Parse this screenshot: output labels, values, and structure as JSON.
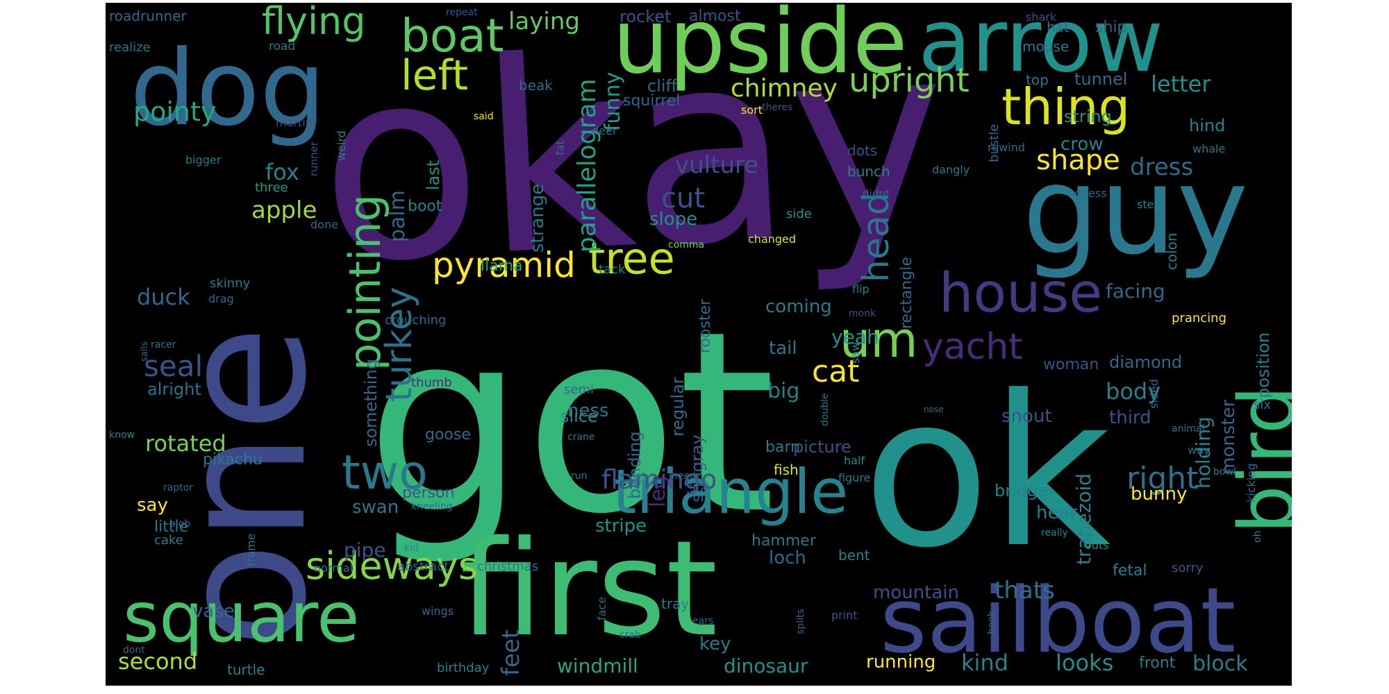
{
  "background_color": "#000000",
  "palette": [
    "#440154",
    "#482878",
    "#3e4989",
    "#31688e",
    "#26828e",
    "#1f9e89",
    "#35b779",
    "#6ece58",
    "#b5de2b",
    "#fde725"
  ],
  "words": [
    {
      "text": "okay",
      "color": "#481f70"
    },
    {
      "text": "got",
      "color": "#35b779"
    },
    {
      "text": "one",
      "color": "#3e4989"
    },
    {
      "text": "ok",
      "color": "#21918c"
    },
    {
      "text": "first",
      "color": "#3fbc73"
    },
    {
      "text": "arrow",
      "color": "#21918c"
    },
    {
      "text": "guy",
      "color": "#2a788e"
    },
    {
      "text": "upside",
      "color": "#6ece58"
    },
    {
      "text": "dog",
      "color": "#31688e"
    },
    {
      "text": "sailboat",
      "color": "#3e4989"
    },
    {
      "text": "square",
      "color": "#4ac16d"
    },
    {
      "text": "bird",
      "color": "#35b779"
    },
    {
      "text": "triangle",
      "color": "#26828e"
    },
    {
      "text": "house",
      "color": "#443a83"
    },
    {
      "text": "thing",
      "color": "#dde318"
    },
    {
      "text": "boat",
      "color": "#5ec962"
    },
    {
      "text": "flying",
      "color": "#52c569"
    },
    {
      "text": "left",
      "color": "#b5de2b"
    },
    {
      "text": "upright",
      "color": "#7ad151"
    },
    {
      "text": "pointing",
      "color": "#4ac16d"
    },
    {
      "text": "turkey",
      "color": "#2c728e"
    },
    {
      "text": "tree",
      "color": "#c8e020"
    },
    {
      "text": "pyramid",
      "color": "#fde725"
    },
    {
      "text": "two",
      "color": "#2a788e"
    },
    {
      "text": "sideways",
      "color": "#86d549"
    },
    {
      "text": "um",
      "color": "#75d054"
    },
    {
      "text": "yacht",
      "color": "#472d7b"
    },
    {
      "text": "head",
      "color": "#2a788e"
    },
    {
      "text": "cat",
      "color": "#fde725"
    },
    {
      "text": "right",
      "color": "#2c728e"
    },
    {
      "text": "flamingo",
      "color": "#3b528b"
    },
    {
      "text": "pointy",
      "color": "#22a884"
    },
    {
      "text": "chimney",
      "color": "#b5de2b"
    },
    {
      "text": "shape",
      "color": "#fde725"
    },
    {
      "text": "laying",
      "color": "#65cb5e"
    },
    {
      "text": "rocket",
      "color": "#3b528b"
    },
    {
      "text": "almost",
      "color": "#3b528b"
    },
    {
      "text": "roadrunner",
      "color": "#31688e"
    },
    {
      "text": "repeat",
      "color": "#3b528b"
    },
    {
      "text": "shark",
      "color": "#3b528b"
    },
    {
      "text": "hat",
      "color": "#31688e"
    },
    {
      "text": "ship",
      "color": "#31688e"
    },
    {
      "text": "realize",
      "color": "#2a788e"
    },
    {
      "text": "road",
      "color": "#2a788e"
    },
    {
      "text": "mouse",
      "color": "#2a788e"
    },
    {
      "text": "parallelogram",
      "color": "#20a386"
    },
    {
      "text": "funny",
      "color": "#1f9e89"
    },
    {
      "text": "cliff",
      "color": "#31688e"
    },
    {
      "text": "beak",
      "color": "#31688e"
    },
    {
      "text": "squirrel",
      "color": "#31688e"
    },
    {
      "text": "sort",
      "color": "#fde725"
    },
    {
      "text": "top",
      "color": "#2a788e"
    },
    {
      "text": "tunnel",
      "color": "#31688e"
    },
    {
      "text": "letter",
      "color": "#21918c"
    },
    {
      "text": "theres",
      "color": "#3b528b"
    },
    {
      "text": "martini",
      "color": "#3b528b"
    },
    {
      "text": "said",
      "color": "#fde725"
    },
    {
      "text": "deer",
      "color": "#2a788e"
    },
    {
      "text": "fat",
      "color": "#31688e"
    },
    {
      "text": "bustle",
      "color": "#31688e"
    },
    {
      "text": "string",
      "color": "#21918c"
    },
    {
      "text": "crow",
      "color": "#26828e"
    },
    {
      "text": "dots",
      "color": "#3b528b"
    },
    {
      "text": "bunch",
      "color": "#26828e"
    },
    {
      "text": "hind",
      "color": "#26828e"
    },
    {
      "text": "whale",
      "color": "#2a788e"
    },
    {
      "text": "dress",
      "color": "#31688e"
    },
    {
      "text": "fox",
      "color": "#26828e"
    },
    {
      "text": "strange",
      "color": "#2a788e"
    },
    {
      "text": "vulture",
      "color": "#3b528b"
    },
    {
      "text": "apple",
      "color": "#a0da39"
    },
    {
      "text": "last",
      "color": "#21918c"
    },
    {
      "text": "palm",
      "color": "#31688e"
    },
    {
      "text": "boot",
      "color": "#26828e"
    },
    {
      "text": "cut",
      "color": "#3b528b"
    },
    {
      "text": "bigger",
      "color": "#2a788e"
    },
    {
      "text": "weird",
      "color": "#26828e"
    },
    {
      "text": "runner",
      "color": "#3b528b"
    },
    {
      "text": "three",
      "color": "#1f9e89"
    },
    {
      "text": "didnt",
      "color": "#31688e"
    },
    {
      "text": "dangly",
      "color": "#2a788e"
    },
    {
      "text": "rewind",
      "color": "#31688e"
    },
    {
      "text": "guess",
      "color": "#31688e"
    },
    {
      "text": "step",
      "color": "#26828e"
    },
    {
      "text": "slope",
      "color": "#21918c"
    },
    {
      "text": "side",
      "color": "#21918c"
    },
    {
      "text": "changed",
      "color": "#dde318"
    },
    {
      "text": "done",
      "color": "#31688e"
    },
    {
      "text": "comma",
      "color": "#6ece58"
    },
    {
      "text": "llama",
      "color": "#22a884"
    },
    {
      "text": "rectangle",
      "color": "#31688e"
    },
    {
      "text": "colon",
      "color": "#2a788e"
    },
    {
      "text": "tack",
      "color": "#26828e"
    },
    {
      "text": "skinny",
      "color": "#2a788e"
    },
    {
      "text": "drag",
      "color": "#31688e"
    },
    {
      "text": "duck",
      "color": "#31688e"
    },
    {
      "text": "facing",
      "color": "#31688e"
    },
    {
      "text": "flip",
      "color": "#26828e"
    },
    {
      "text": "coming",
      "color": "#2a788e"
    },
    {
      "text": "rooster",
      "color": "#31688e"
    },
    {
      "text": "monk",
      "color": "#3b528b"
    },
    {
      "text": "prancing",
      "color": "#fde725"
    },
    {
      "text": "position",
      "color": "#26828e"
    },
    {
      "text": "crouching",
      "color": "#31688e"
    },
    {
      "text": "seal",
      "color": "#3b528b"
    },
    {
      "text": "yeah",
      "color": "#21918c"
    },
    {
      "text": "racer",
      "color": "#2a788e"
    },
    {
      "text": "sails",
      "color": "#31688e"
    },
    {
      "text": "something",
      "color": "#31688e"
    },
    {
      "text": "alright",
      "color": "#2c728e"
    },
    {
      "text": "tail",
      "color": "#2a788e"
    },
    {
      "text": "saw",
      "color": "#21918c"
    },
    {
      "text": "woman",
      "color": "#3b528b"
    },
    {
      "text": "sided",
      "color": "#31688e"
    },
    {
      "text": "diamond",
      "color": "#31688e"
    },
    {
      "text": "regular",
      "color": "#31688e"
    },
    {
      "text": "semi",
      "color": "#31688e"
    },
    {
      "text": "ness",
      "color": "#2a788e"
    },
    {
      "text": "thumb",
      "color": "#472d7b"
    },
    {
      "text": "big",
      "color": "#26828e"
    },
    {
      "text": "body",
      "color": "#26828e"
    },
    {
      "text": "six",
      "color": "#31688e"
    },
    {
      "text": "stingray",
      "color": "#31688e"
    },
    {
      "text": "slice",
      "color": "#21918c"
    },
    {
      "text": "snout",
      "color": "#3b528b"
    },
    {
      "text": "third",
      "color": "#3b528b"
    },
    {
      "text": "nose",
      "color": "#31688e"
    },
    {
      "text": "rotated",
      "color": "#7ad151"
    },
    {
      "text": "trapezoid",
      "color": "#26828e"
    },
    {
      "text": "know",
      "color": "#26828e"
    },
    {
      "text": "goose",
      "color": "#31688e"
    },
    {
      "text": "crane",
      "color": "#2a788e"
    },
    {
      "text": "barn",
      "color": "#2a788e"
    },
    {
      "text": "picture",
      "color": "#3b528b"
    },
    {
      "text": "double",
      "color": "#2a788e"
    },
    {
      "text": "animal",
      "color": "#2a788e"
    },
    {
      "text": "way",
      "color": "#31688e"
    },
    {
      "text": "holding",
      "color": "#26828e"
    },
    {
      "text": "monster",
      "color": "#31688e"
    },
    {
      "text": "bending",
      "color": "#31688e"
    },
    {
      "text": "fish",
      "color": "#dde318"
    },
    {
      "text": "kicking",
      "color": "#31688e"
    },
    {
      "text": "half",
      "color": "#21918c"
    },
    {
      "text": "pikachu",
      "color": "#2a788e"
    },
    {
      "text": "figure",
      "color": "#2a788e"
    },
    {
      "text": "bowl",
      "color": "#2a788e"
    },
    {
      "text": "run",
      "color": "#2a788e"
    },
    {
      "text": "need",
      "color": "#2a788e"
    },
    {
      "text": "let",
      "color": "#2a788e"
    },
    {
      "text": "leg",
      "color": "#472d7b"
    },
    {
      "text": "person",
      "color": "#3b528b"
    },
    {
      "text": "bridge",
      "color": "#26828e"
    },
    {
      "text": "raptor",
      "color": "#31688e"
    },
    {
      "text": "kneeling",
      "color": "#31688e"
    },
    {
      "text": "say",
      "color": "#fde725"
    },
    {
      "text": "swan",
      "color": "#2a788e"
    },
    {
      "text": "bunny",
      "color": "#fde725"
    },
    {
      "text": "hear",
      "color": "#26828e"
    },
    {
      "text": "blob",
      "color": "#31688e"
    },
    {
      "text": "stripe",
      "color": "#21918c"
    },
    {
      "text": "oh",
      "color": "#26828e"
    },
    {
      "text": "little",
      "color": "#2a788e"
    },
    {
      "text": "cake",
      "color": "#26828e"
    },
    {
      "text": "hammer",
      "color": "#2a788e"
    },
    {
      "text": "really",
      "color": "#26828e"
    },
    {
      "text": "pipe",
      "color": "#3b528b"
    },
    {
      "text": "frame",
      "color": "#2a788e"
    },
    {
      "text": "kid",
      "color": "#26828e"
    },
    {
      "text": "loch",
      "color": "#31688e"
    },
    {
      "text": "outs",
      "color": "#21918c"
    },
    {
      "text": "bent",
      "color": "#26828e"
    },
    {
      "text": "abstract",
      "color": "#31688e"
    },
    {
      "text": "christmas",
      "color": "#2c728e"
    },
    {
      "text": "normal",
      "color": "#2a788e"
    },
    {
      "text": "fetal",
      "color": "#26828e"
    },
    {
      "text": "sorry",
      "color": "#3b528b"
    },
    {
      "text": "mountain",
      "color": "#3b528b"
    },
    {
      "text": "thats",
      "color": "#2c728e"
    },
    {
      "text": "face",
      "color": "#31688e"
    },
    {
      "text": "wings",
      "color": "#31688e"
    },
    {
      "text": "feet",
      "color": "#31688e"
    },
    {
      "text": "tray",
      "color": "#26828e"
    },
    {
      "text": "print",
      "color": "#3b528b"
    },
    {
      "text": "vase",
      "color": "#31688e"
    },
    {
      "text": "ears",
      "color": "#31688e"
    },
    {
      "text": "crab",
      "color": "#31688e"
    },
    {
      "text": "splits",
      "color": "#31688e"
    },
    {
      "text": "book",
      "color": "#31688e"
    },
    {
      "text": "dont",
      "color": "#31688e"
    },
    {
      "text": "key",
      "color": "#2a788e"
    },
    {
      "text": "second",
      "color": "#b5de2b"
    },
    {
      "text": "turtle",
      "color": "#26828e"
    },
    {
      "text": "birthday",
      "color": "#26828e"
    },
    {
      "text": "windmill",
      "color": "#22a884"
    },
    {
      "text": "dinosaur",
      "color": "#21918c"
    },
    {
      "text": "running",
      "color": "#fde725"
    },
    {
      "text": "kind",
      "color": "#26828e"
    },
    {
      "text": "looks",
      "color": "#21918c"
    },
    {
      "text": "front",
      "color": "#26828e"
    },
    {
      "text": "block",
      "color": "#26828e"
    }
  ]
}
